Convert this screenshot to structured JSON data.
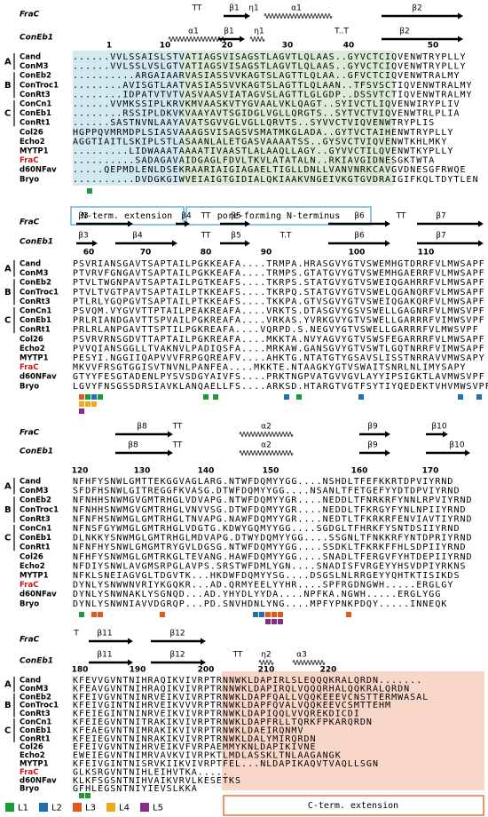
{
  "reference_labels": [
    "FraC",
    "ConEb1"
  ],
  "groups": [
    "A",
    "B",
    "C"
  ],
  "blocks": [
    {
      "frac_ss": [
        "TT",
        "β1",
        "η1",
        "α1",
        "β2"
      ],
      "coneb1_ss": [
        "α1",
        "β1",
        "η1",
        "T..T",
        "β2"
      ],
      "ruler": [
        1,
        10,
        20,
        30,
        40,
        50
      ],
      "rows": [
        {
          "name": "Cand",
          "seq": "......VVLSSAISLSTVATIAGSVISAGSTLAGVTLQLAAS..GYVCTCIQVENWTRYPLLY"
        },
        {
          "name": "ConM3",
          "seq": "......VVLSSLVSLGTVATIAGSVISAGSTLAGVTLQLAAS..GYVCTCIQVENWTRYPLLY"
        },
        {
          "name": "ConEb2",
          "seq": "..........ARGAIAARVASIASSVVKAGTSLAGTTLQLAA..GFVCTCIQVENWTRALMY"
        },
        {
          "name": "ConTroc1",
          "seq": "........AVISGTLAATVASIASSVVKAGTSLAGTTLQLAAN..TFSVSCTIQVENWTRALMY"
        },
        {
          "name": "ConRt3",
          "seq": "........IDPATVTVTVASVAASVIATAGVSLAGTTLGLGDP..DSSVTCTIQVENWTRALMY"
        },
        {
          "name": "ConCn1",
          "seq": "......VVMKSSIPLKRVKMVAASKVTYGVAALVKLQAGT..SYIVCTLIQVENWIRYPLIV"
        },
        {
          "name": "ConEb1",
          "seq": "........RSSIPLDKVKVAAYAVTSGIDGLVGLLQRGTS..SYTVCTVIQVENWTRLPLIA"
        },
        {
          "name": "ConRt1",
          "seq": "......SASTNVNLAAYAVATSGVVGLVGLLQRVTS..SYVVCTVIQVENWTRYPLIS"
        },
        {
          "name": "Col26",
          "seq": "HGPPQVMRMDPLSIASVAAAGSVISAGSVSMATMKGLADA..GYTVCTAIHENWTRYPLLY"
        },
        {
          "name": "Echo2",
          "seq": "AGGTIAITLSKIPLSTLASAANLALETGASVAAAATSS..GYSVCTVIQVENWTKHLMKY"
        },
        {
          "name": "MYTP1",
          "seq": ".........LIDWAAATAAAATIVAASTLALAAQLLAGY..GYVVCTILQVENWTKYPLLY"
        },
        {
          "name": "FraC",
          "seq": "..........SADAGAVAIDGAGLFDVLTKVLATATALN..RKIAVGIDNESGKTWTA"
        },
        {
          "name": "d60NFav",
          "seq": ".....QEPMDLENLDSEKRAARIAIGIAGAELTIGLLDNLLVANVNRKCAVGVDNESGFRWQE"
        },
        {
          "name": "Bryo",
          "seq": "..........DVDGKGIWVEIAIGTGIDIALQKIAAKVNGEIVKGTGVDRAIGIFKQLTDYTLEN"
        }
      ]
    },
    {
      "frac_ss": [
        "β3",
        "β4",
        "TT",
        "β5",
        "..",
        "β6",
        "TT",
        "β7"
      ],
      "coneb1_ss": [
        "β3",
        "β4",
        "TT",
        "β5",
        "T.T",
        "β6",
        "β7"
      ],
      "ruler": [
        60,
        70,
        80,
        90,
        100,
        110
      ],
      "rows": [
        {
          "name": "Cand",
          "seq": "PSVRIANSGAVTSAPTAILPGKKEAFA....TRMPA.HRASGVYGTVSWEMHGTDRRFVLMWSAPF"
        },
        {
          "name": "ConM3",
          "seq": "PTVRVFGNGAVTSAPTAILPGKKEAFA....TRMPS.GTATGVYGTVSWEMHGAERRFVLMWSAPF"
        },
        {
          "name": "ConEb2",
          "seq": "PTVLTWGNPAVTSAPTAILPGTKEAFS....TKRPS.STATGVYGTVSWEIQGAHRRFVLMWSAPF"
        },
        {
          "name": "ConTroc1",
          "seq": "PTVLTVGTPAVTSAPTAILPTKKEAFS....TKRPQ.STATGVYGTVSWELQGANQRFVLMWSAPF"
        },
        {
          "name": "ConRt3",
          "seq": "PTLRLYGQPGVTSAPTAILPTKKEAFS....TKKPA.GTVSGVYGTVSWEIQGAKQRFVLMWSAPF"
        },
        {
          "name": "ConCn1",
          "seq": "PSVQM.VYGVVTTPTAILPEAKREAFA....VRKTS.DTASGVYGSVSWELLGAGNRFVLMWSVPF"
        },
        {
          "name": "ConEb1",
          "seq": "PRLRIANDGAVTTSPVAILPGKREAFA....VRKAS.YVRKGVYGTVSWELLGARRRFVIMWSVPF"
        },
        {
          "name": "ConRt1",
          "seq": "PRLRLANPGAVTTSPTILPGKREAFA....VQRPD.S.NEGVYGTVSWELLGARRRFVLMWSVPF"
        },
        {
          "name": "Col26",
          "seq": "PSVRVRNSGDVTTAPTAILPGKREAFA....MKKTA.NVYAGVYGTVSWSFEGARRRFVLMWSAPF"
        },
        {
          "name": "Echo2",
          "seq": "PVVQIANSGGLLTVAKNVLPADIQSFA....MRKAW.GANSGVYGTVSWTLGQTNRRFVIMWSAPF"
        },
        {
          "name": "MYTP1",
          "seq": "PESYI.NGGIIQAPVVVFRPGQREAFV....AHKTG.NTATGTYGSAVSLISSTNRRAVVMWSAPY"
        },
        {
          "name": "FraC",
          "seq": "MKVVFRSGTGGISVTNVNLPANFEA....MKKTE.NTAAGKYGTVSWAITSNRLNLIMYSAPY"
        },
        {
          "name": "d60NFav",
          "seq": "GTYYFESGTADENLPYSVSDGYAIVFS....PRKTNGPVATGVVGVLAYYIPSIGKTLAVMWSVPF"
        },
        {
          "name": "Bryo",
          "seq": "LGVYFNSGSSDRSIAVKLANQAELLFS....ARKSD.HTARGTVGTFSYTIYQEDEKTVHVMWSVPF"
        }
      ]
    },
    {
      "frac_ss": [
        "β8",
        "TT",
        "α2",
        "β9",
        "β10"
      ],
      "coneb1_ss": [
        "β8",
        "TT",
        "α2",
        "β9",
        "β10"
      ],
      "ruler": [
        120,
        130,
        140,
        150,
        160,
        170
      ],
      "rows": [
        {
          "name": "Cand",
          "seq": "NFHFYSNWLGMTTEKGGVAGLARG.NTWFDQMYYGG....NSHDLTFEFKKRTDPVIYRND"
        },
        {
          "name": "ConM3",
          "seq": "SFDFHSNWLGITREGGFKVASG.DTWFDQMYYGG....NSANLTFETGEFYYDTDPVIYRND"
        },
        {
          "name": "ConEb2",
          "seq": "NFNHHSNWMGVGMTRHGLVDVAPG.NTWFDQMYYGR....NEDDLTFNRKRFYNNLRPVIYRND"
        },
        {
          "name": "ConTroc1",
          "seq": "NFNHHSNWMGVGMTRHGLVNVVSG.DTWFDQMYYGR....NEDDLTFKRGYFYNLNPIIYRND"
        },
        {
          "name": "ConRt3",
          "seq": "NFNFHSNWMGLGMTRHGLTNVAPG.NAWFDQMYYGR....NEDTLTFKRKRFENVIAVTIYRND"
        },
        {
          "name": "ConCn1",
          "seq": "NFNSFGYWMGLGMTRHGLVDGTG.KDWYGQMYYGG....SGDGLTFHRKFYSNTDSIIYRND"
        },
        {
          "name": "ConEb1",
          "seq": "DLNKKYSNWMGLGMTRHGLMDVAPG.DTWYDQMYYGG....SSGNLTFNKKRFYNTDPRIYRND"
        },
        {
          "name": "ConRt1",
          "seq": "NFNFHYSNWLGMGMTRYGVLDGSG.NTWFDQMYYGG....SSDKLTFKRKFFHLSDPIIYRND"
        },
        {
          "name": "Col26",
          "seq": "NFHFYSNWMGLGMTRKGLTEVANG.HAWFDQMYYGG....SNADLTFERGVFYHTDEPIIYRND"
        },
        {
          "name": "Echo2",
          "seq": "NFDIYSNWLAVGMSRPGLAVPS.SRSTWFDMLYGN....SNADISFVRGEYYHSVDPIYRKNS"
        },
        {
          "name": "MYTP1",
          "seq": "NFKLSNEIAGVGLTDGVTK...HKDWFDQMYYSG....DSGSLNLRRGEYYQHTKTISIKDS"
        },
        {
          "name": "FraC",
          "seq": "DYNLYSNWWNVRIYKGQKR...AD.QRMYEELYYHR....SPFRGDNGWH.....ERGLGY"
        },
        {
          "name": "d60NFav",
          "seq": "DYNLYSNWNAKLYSGNQD...AD.YHYDLYYDA....NPFKA.NGWH.....ERGLYGG"
        },
        {
          "name": "Bryo",
          "seq": "DYNLYSNWNIAVVDGRQP...PD.SNVHDNLYNG....MPFYPNKPDQY.....INNEQK"
        }
      ]
    },
    {
      "frac_ss": [
        "T",
        "β11",
        "β12"
      ],
      "coneb1_ss": [
        "β11",
        "β12",
        "TT",
        "η2",
        "α3"
      ],
      "ruler": [
        180,
        190,
        200,
        210,
        220
      ],
      "rows": [
        {
          "name": "Cand",
          "seq": "KFEVVGVNTNIHRAQIKVIVRPTRNNWKLDAPIRLSLEQQQKRALQRDN......."
        },
        {
          "name": "ConM3",
          "seq": "KFEAVGVNTNIHRAQIKVIVRPTRNNWKLDAPIRQLVQQQRHALQQKRALQRDN"
        },
        {
          "name": "ConEb2",
          "seq": "KFEIVGVNTNINRVEIKVIVRPTRNWKLDAPFQALLVQQKEEEVCNSTTERMWASAL"
        },
        {
          "name": "ConTroc1",
          "seq": "KFEIVGINTNIHRVEIKVVVRPTRNWKLDAPFQVALVQQKEEVCSMTTEHM"
        },
        {
          "name": "ConRt3",
          "seq": "KFEIEGINTNINRVEIKVIVRPTRNWKLDAPIQQLVVQREKDICDI"
        },
        {
          "name": "ConCn1",
          "seq": "KFEIEGVNTNITRAKIKVIVRPTRNWKLDAPFRLLTQRKFPKARQRDN"
        },
        {
          "name": "ConEb1",
          "seq": "KFEAEGVNTNIMRAKIKVIVRPTRNWKLDAEIRQNMV"
        },
        {
          "name": "ConRt1",
          "seq": "KFEIEGVNTNINRAKIKVIVRPTRNWKLDALYMIRQRDN"
        },
        {
          "name": "Col26",
          "seq": "EFEIVGVNTNIHRVEIKVFVRPAEMMYKNLDAPIKIVNE"
        },
        {
          "name": "Echo2",
          "seq": "EWEIEGVNTNIMRVAVKVIVRPKTLMDLASSKLTNLAAGANGK"
        },
        {
          "name": "MYTP1",
          "seq": "KFEIVGINTNISRVKIIKVIVRPTFEL...NLDAPIKAQVTVAQLLSGN"
        },
        {
          "name": "FraC",
          "seq": "GLKSRGVNTNIHLEIHVTKA....."
        },
        {
          "name": "d60NFav",
          "seq": "KLKFSGSNTNIHVAIKVRVLKESETKS"
        },
        {
          "name": "Bryo",
          "seq": "GFHLEGSNTNIYIEVSLKKA"
        }
      ]
    }
  ],
  "annotations": {
    "n_term": "N-term. extension",
    "pore": "pore-forming N-terminus",
    "c_term": "C-term. extension"
  },
  "legend": [
    "L1",
    "L2",
    "L3",
    "L4",
    "L5"
  ]
}
